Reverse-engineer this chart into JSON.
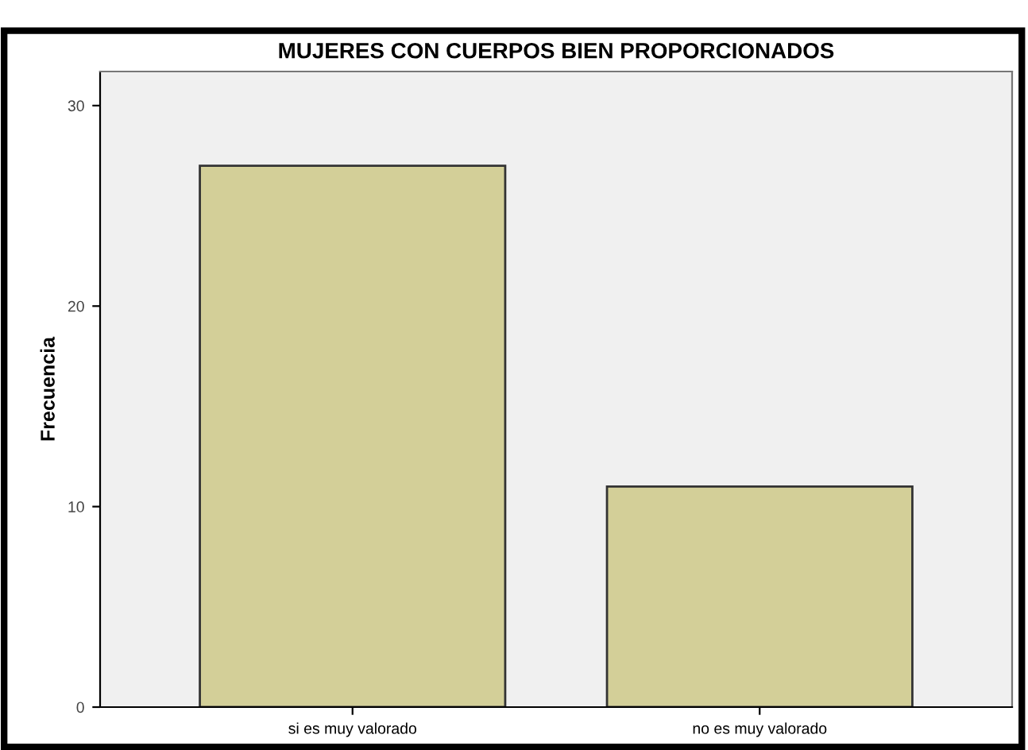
{
  "chart_data": {
    "type": "bar",
    "title": "MUJERES CON CUERPOS BIEN PROPORCIONADOS",
    "ylabel": "Frecuencia",
    "categories": [
      "si es muy valorado",
      "no es muy valorado"
    ],
    "values": [
      27,
      11
    ],
    "color": "#d3cf98",
    "ylim": [
      0,
      31.7
    ],
    "yticks": [
      0,
      10,
      20,
      30
    ],
    "grid": false
  }
}
